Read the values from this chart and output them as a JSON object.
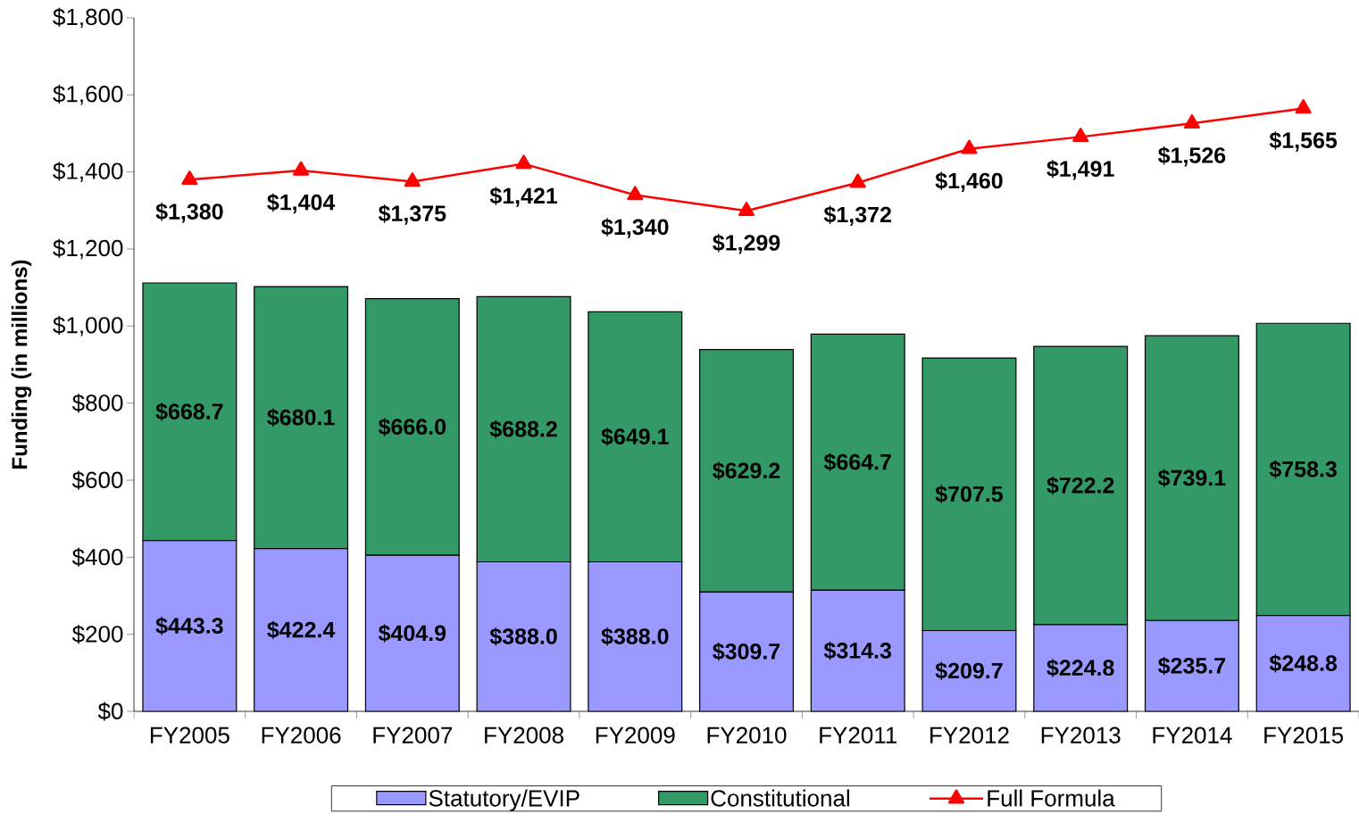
{
  "chart_data": {
    "type": "bar",
    "stacked": true,
    "ylabel": "Funding (in millions)",
    "categories": [
      "FY2005",
      "FY2006",
      "FY2007",
      "FY2008",
      "FY2009",
      "FY2010",
      "FY2011",
      "FY2012",
      "FY2013",
      "FY2014",
      "FY2015"
    ],
    "ylim": [
      0,
      1800
    ],
    "yticks": [
      {
        "value": 0,
        "label": "$0"
      },
      {
        "value": 200,
        "label": "$200"
      },
      {
        "value": 400,
        "label": "$400"
      },
      {
        "value": 600,
        "label": "$600"
      },
      {
        "value": 800,
        "label": "$800"
      },
      {
        "value": 1000,
        "label": "$1,000"
      },
      {
        "value": 1200,
        "label": "$1,200"
      },
      {
        "value": 1400,
        "label": "$1,400"
      },
      {
        "value": 1600,
        "label": "$1,600"
      },
      {
        "value": 1800,
        "label": "$1,800"
      }
    ],
    "legend": "bottom",
    "grid": false,
    "series": [
      {
        "name": "Statutory/EVIP",
        "color": "#9999ff",
        "values": [
          443.3,
          422.4,
          404.9,
          388.0,
          388.0,
          309.7,
          314.3,
          209.7,
          224.8,
          235.7,
          248.8
        ],
        "value_labels": [
          "$443.3",
          "$422.4",
          "$404.9",
          "$388.0",
          "$388.0",
          "$309.7",
          "$314.3",
          "$209.7",
          "$224.8",
          "$235.7",
          "$248.8"
        ]
      },
      {
        "name": "Constitutional",
        "color": "#339966",
        "values": [
          668.7,
          680.1,
          666.0,
          688.2,
          649.1,
          629.2,
          664.7,
          707.5,
          722.2,
          739.1,
          758.3
        ],
        "value_labels": [
          "$668.7",
          "$680.1",
          "$666.0",
          "$688.2",
          "$649.1",
          "$629.2",
          "$664.7",
          "$707.5",
          "$722.2",
          "$739.1",
          "$758.3"
        ]
      },
      {
        "name": "Full Formula",
        "type": "line",
        "color": "#ff0000",
        "marker": "triangle",
        "line_style": "solid",
        "values": [
          1380,
          1404,
          1375,
          1421,
          1340,
          1299,
          1372,
          1460,
          1491,
          1526,
          1565
        ],
        "value_labels": [
          "$1,380",
          "$1,404",
          "$1,375",
          "$1,421",
          "$1,340",
          "$1,299",
          "$1,372",
          "$1,460",
          "$1,491",
          "$1,526",
          "$1,565"
        ]
      }
    ]
  }
}
